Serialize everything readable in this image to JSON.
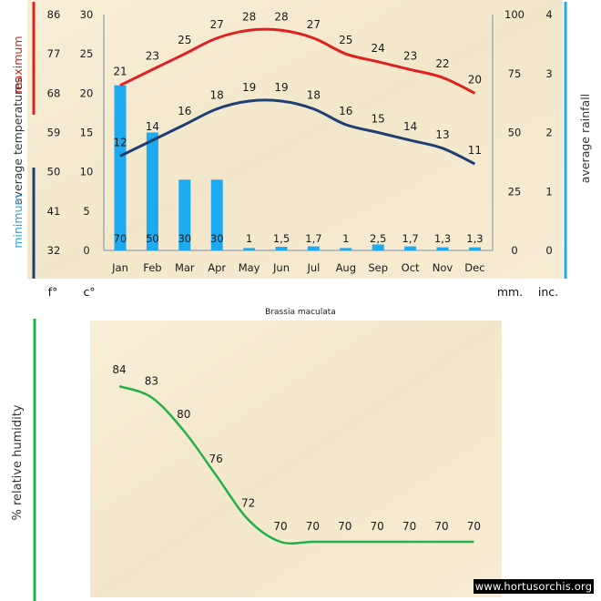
{
  "chart_data": [
    {
      "type": "bar+line",
      "title": "Brassia maculata",
      "categories": [
        "Jan",
        "Feb",
        "Mar",
        "Apr",
        "May",
        "Jun",
        "Jul",
        "Aug",
        "Sep",
        "Oct",
        "Nov",
        "Dec"
      ],
      "series": [
        {
          "name": "maximum",
          "axis": "celsius",
          "color": "#e02020",
          "values": [
            21,
            23,
            25,
            27,
            28,
            28,
            27,
            25,
            24,
            23,
            22,
            20
          ]
        },
        {
          "name": "minimum",
          "axis": "celsius",
          "color": "#1f3f73",
          "values": [
            12,
            14,
            16,
            18,
            19,
            19,
            18,
            16,
            15,
            14,
            13,
            11
          ]
        },
        {
          "name": "rainfall",
          "axis": "mm",
          "color": "#1eaaf0",
          "values": [
            70,
            50,
            30,
            30,
            1,
            1.5,
            1.7,
            1,
            2.5,
            1.7,
            1.3,
            1.3
          ]
        }
      ],
      "bar_labels": [
        "70",
        "50",
        "30",
        "30",
        "1",
        "1,5",
        "1,7",
        "1",
        "2,5",
        "1,7",
        "1,3",
        "1,3"
      ],
      "axes": {
        "fahrenheit": {
          "unit": "f°",
          "ticks": [
            "86",
            "77",
            "68",
            "59",
            "50",
            "41",
            "32"
          ]
        },
        "celsius": {
          "unit": "c°",
          "ticks": [
            "30",
            "25",
            "20",
            "15",
            "10",
            "5",
            "0"
          ],
          "ylim": [
            0,
            30
          ]
        },
        "mm": {
          "unit": "mm.",
          "ticks": [
            "100",
            "75",
            "50",
            "25",
            "0"
          ],
          "ylim": [
            0,
            100
          ]
        },
        "inches": {
          "unit": "inc.",
          "ticks": [
            "4",
            "3",
            "2",
            "1",
            "0"
          ]
        }
      },
      "left_label": {
        "minimum": "minimum",
        "average": "average temperatures",
        "maximum": "maximum"
      },
      "right_label": "average rainfall"
    },
    {
      "type": "line",
      "categories": [
        "Jan",
        "Feb",
        "Mar",
        "Apr",
        "May",
        "Jun",
        "Jul",
        "Aug",
        "Sep",
        "Oct",
        "Nov",
        "Dec"
      ],
      "series": [
        {
          "name": "relative humidity",
          "color": "#22b04a",
          "values": [
            84,
            83,
            80,
            76,
            72,
            70,
            70,
            70,
            70,
            70,
            70,
            70
          ]
        }
      ],
      "value_labels": [
        "84",
        "83",
        "80",
        "76",
        "72",
        "70",
        "70",
        "70",
        "70",
        "70",
        "70",
        "70"
      ],
      "ylabel": "% relative humidity"
    }
  ],
  "watermark": "www.hortusorchis.org"
}
